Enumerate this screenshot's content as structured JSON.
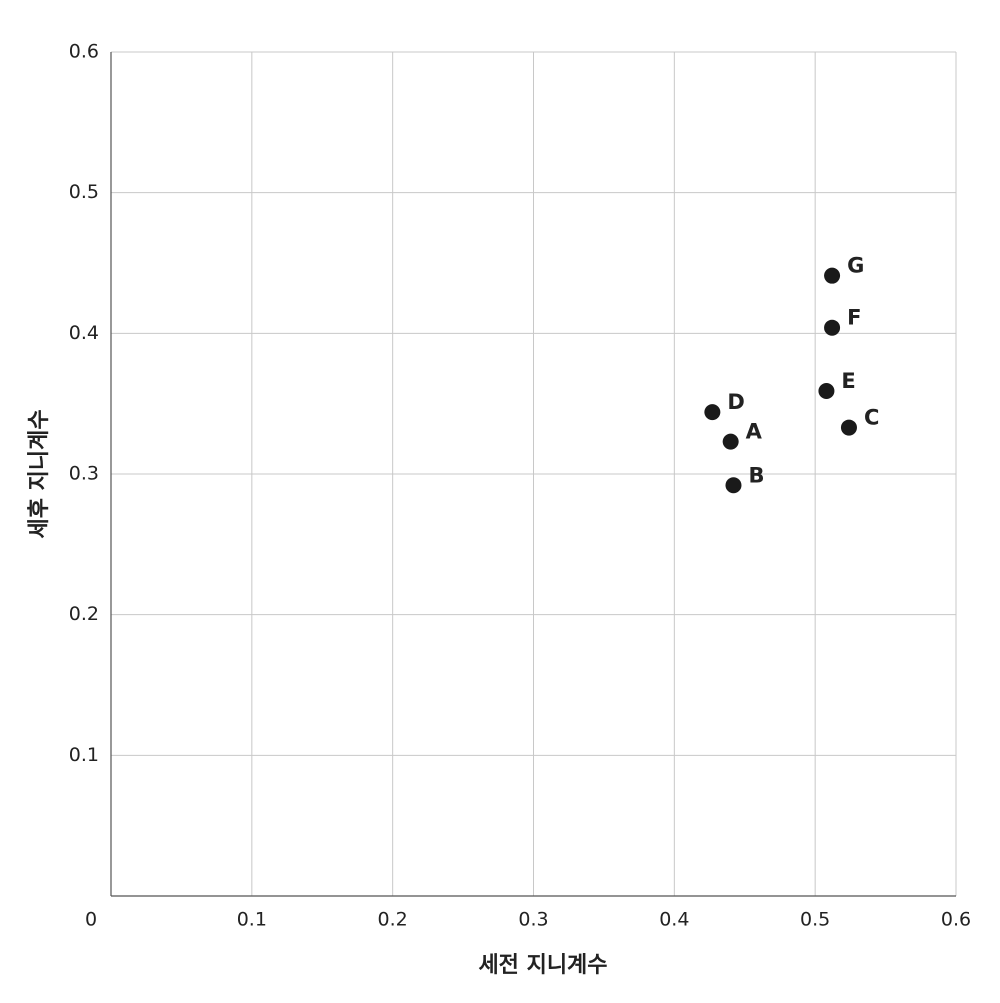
{
  "chart_data": {
    "type": "scatter",
    "xlabel": "세전 지니계수",
    "ylabel": "세후 지니계수",
    "labels": [
      "A",
      "B",
      "C",
      "D",
      "E",
      "F",
      "G"
    ],
    "x": [
      0.44,
      0.442,
      0.524,
      0.427,
      0.508,
      0.512,
      0.512
    ],
    "values": [
      0.323,
      0.292,
      0.333,
      0.344,
      0.359,
      0.404,
      0.441
    ],
    "color": "#1a1a1a",
    "xlim": [
      0,
      0.6
    ],
    "ylim": [
      0,
      0.6
    ],
    "xticks": [
      0,
      0.1,
      0.2,
      0.3,
      0.4,
      0.5,
      0.6
    ],
    "yticks": [
      0.1,
      0.2,
      0.3,
      0.4,
      0.5,
      0.6
    ],
    "grid": true
  }
}
